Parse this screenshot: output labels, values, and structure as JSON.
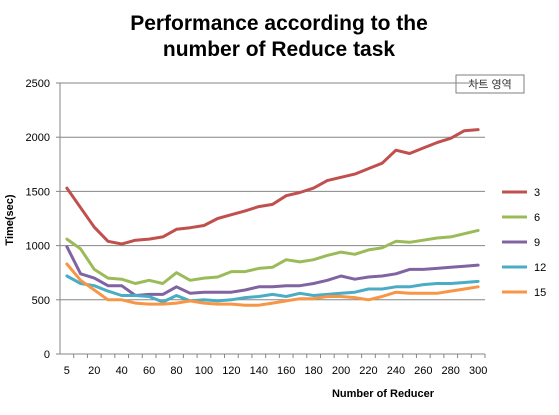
{
  "chart_data": {
    "type": "line",
    "title_lines": [
      "Performance according to the",
      "number of  Reduce task"
    ],
    "xlabel": "Number of Reducer",
    "ylabel": "Time(sec)",
    "ylim": [
      0,
      2500
    ],
    "yticks": [
      0,
      500,
      1000,
      1500,
      2000,
      2500
    ],
    "x": [
      5,
      10,
      20,
      30,
      40,
      50,
      60,
      70,
      80,
      90,
      100,
      110,
      120,
      130,
      140,
      150,
      160,
      170,
      180,
      190,
      200,
      210,
      220,
      230,
      240,
      250,
      260,
      270,
      280,
      290,
      300
    ],
    "xtick_labels": [
      "5",
      "20",
      "40",
      "60",
      "80",
      "100",
      "120",
      "140",
      "160",
      "180",
      "200",
      "220",
      "240",
      "260",
      "280",
      "300"
    ],
    "grid": true,
    "legend_position": "right",
    "area_label": "차트 영역",
    "series": [
      {
        "name": "3",
        "color": "#c0504d",
        "values": [
          1530,
          1350,
          1170,
          1040,
          1015,
          1050,
          1060,
          1080,
          1150,
          1165,
          1185,
          1250,
          1285,
          1320,
          1360,
          1380,
          1460,
          1490,
          1530,
          1600,
          1630,
          1660,
          1710,
          1760,
          1880,
          1850,
          1900,
          1950,
          1990,
          2060,
          2070
        ]
      },
      {
        "name": "6",
        "color": "#9bbb59",
        "values": [
          1060,
          970,
          780,
          700,
          690,
          650,
          680,
          650,
          750,
          680,
          700,
          710,
          760,
          760,
          790,
          800,
          870,
          850,
          870,
          910,
          940,
          920,
          960,
          980,
          1040,
          1030,
          1050,
          1070,
          1080,
          1110,
          1140
        ]
      },
      {
        "name": "9",
        "color": "#8064a2",
        "values": [
          990,
          740,
          700,
          630,
          630,
          540,
          550,
          550,
          620,
          560,
          570,
          570,
          570,
          590,
          620,
          620,
          630,
          630,
          650,
          680,
          720,
          690,
          710,
          720,
          740,
          780,
          780,
          790,
          800,
          810,
          820
        ]
      },
      {
        "name": "12",
        "color": "#4bacc6",
        "values": [
          720,
          650,
          630,
          580,
          540,
          540,
          530,
          480,
          540,
          490,
          500,
          490,
          500,
          520,
          530,
          550,
          530,
          560,
          540,
          550,
          560,
          570,
          600,
          600,
          620,
          620,
          640,
          650,
          650,
          660,
          670
        ]
      },
      {
        "name": "15",
        "color": "#f79646",
        "values": [
          830,
          680,
          590,
          500,
          500,
          470,
          460,
          460,
          470,
          490,
          470,
          460,
          460,
          450,
          450,
          470,
          490,
          510,
          510,
          530,
          530,
          520,
          500,
          530,
          570,
          560,
          560,
          560,
          580,
          600,
          620
        ]
      }
    ]
  }
}
